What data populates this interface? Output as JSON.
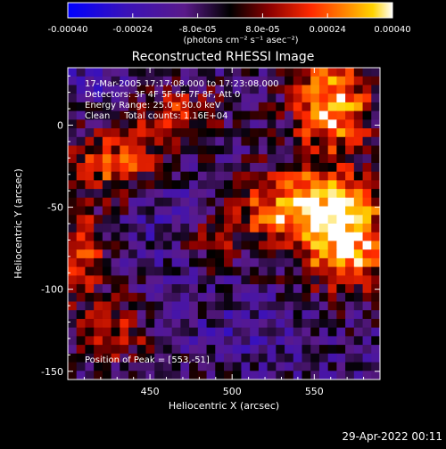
{
  "chart_data": {
    "type": "heatmap",
    "title": "Reconstructed RHESSI Image",
    "xlabel": "Heliocentric X (arcsec)",
    "ylabel": "Heliocentric Y (arcsec)",
    "xlim": [
      400,
      590
    ],
    "ylim": [
      -155,
      35
    ],
    "x_ticks": [
      450,
      500,
      550
    ],
    "y_ticks": [
      0,
      -50,
      -100,
      -150
    ],
    "colorbar": {
      "range": [
        -0.0004,
        0.0004
      ],
      "tick_values": [
        -0.0004,
        -0.00024,
        -8e-05,
        8e-05,
        0.00024,
        0.0004
      ],
      "tick_labels": [
        "-0.00040",
        "-0.00024",
        "-8.0e-05",
        "8.0e-05",
        "0.00024",
        "0.00040"
      ],
      "unit_label": "(photons cm⁻² s⁻¹ asec⁻²)",
      "colormap": [
        "#0000ff",
        "#4b0fb0",
        "#4b0082",
        "#000000",
        "#800000",
        "#ff2000",
        "#ff8000",
        "#ffd000",
        "#ffffff"
      ]
    },
    "annotations": [
      "17-Mar-2005 17:17:08.000 to 17:23:08.000",
      "Detectors: 3F 4F 5F 6F 7F 8F, Att 0",
      "Energy Range: 25.0 - 50.0 keV",
      "Clean     Total counts: 1.16E+04"
    ],
    "peak_label": "Position of Peak = [553,-51]",
    "peak": [
      553,
      -51
    ],
    "grid": false
  },
  "footer": {
    "date": "29-Apr-2022 00:11"
  }
}
